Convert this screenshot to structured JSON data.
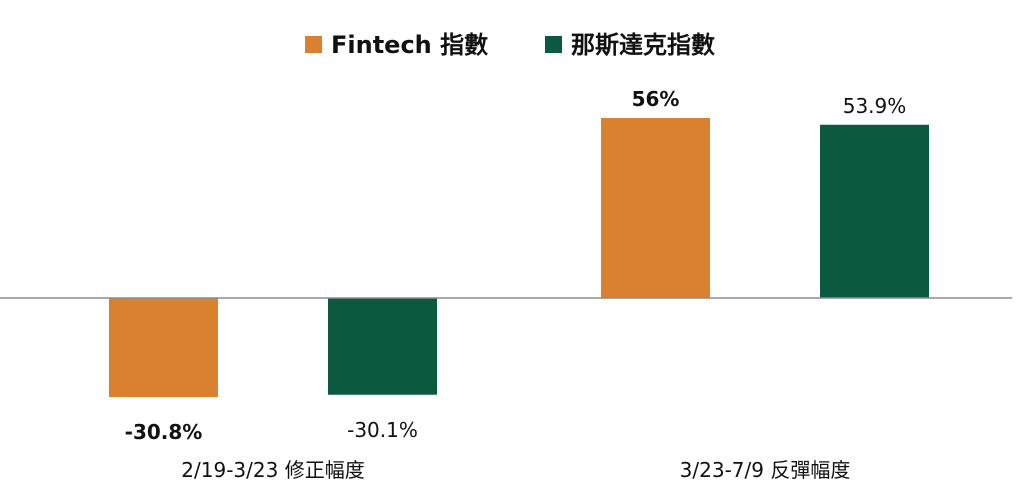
{
  "chart_data": {
    "type": "bar",
    "categories": [
      "2/19-3/23 修正幅度",
      "3/23-7/9 反彈幅度"
    ],
    "series": [
      {
        "name": "Fintech 指數",
        "color": "#D9812F",
        "values": [
          -30.8,
          56.0
        ],
        "labels": [
          "-30.8%",
          "56%"
        ]
      },
      {
        "name": "那斯達克指數",
        "color": "#0B5A40",
        "values": [
          -30.1,
          53.9
        ],
        "labels": [
          "-30.1%",
          "53.9%"
        ]
      }
    ],
    "title": "",
    "xlabel": "",
    "ylabel": "",
    "ylim": [
      -40,
      60
    ],
    "grid": false,
    "legend": "top-center",
    "axis_color": "#8C8C8C"
  }
}
